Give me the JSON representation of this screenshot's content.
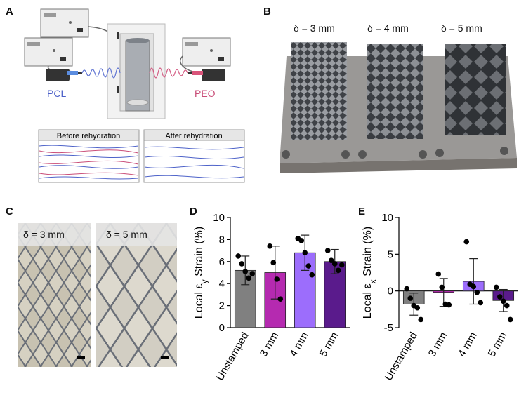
{
  "panels": {
    "A": {
      "label": "A",
      "pcl_label": "PCL",
      "peo_label": "PEO",
      "before_label": "Before rehydration",
      "after_label": "After rehydration"
    },
    "B": {
      "label": "B",
      "deltas": [
        "δ = 3 mm",
        "δ = 4 mm",
        "δ = 5 mm"
      ]
    },
    "C": {
      "label": "C",
      "deltas": [
        "δ = 3 mm",
        "δ = 5 mm"
      ]
    },
    "D": {
      "label": "D"
    },
    "E": {
      "label": "E"
    }
  },
  "chart_data": [
    {
      "type": "bar",
      "panel": "D",
      "ylabel": "Local εy Strain (%)",
      "ylim": [
        0,
        10
      ],
      "yticks": [
        0,
        2,
        4,
        6,
        8,
        10
      ],
      "categories": [
        "Unstamped",
        "3 mm",
        "4 mm",
        "5 mm"
      ],
      "values": [
        5.2,
        5.0,
        6.8,
        6.0
      ],
      "errors": [
        1.3,
        2.4,
        1.6,
        1.1
      ],
      "colors": [
        "#808080",
        "#b52ab0",
        "#9c6dfc",
        "#5a1b8c"
      ],
      "points": [
        [
          6.5,
          5.8,
          5.1,
          4.5,
          4.9
        ],
        [
          7.4,
          5.9,
          4.4,
          2.6
        ],
        [
          8.1,
          7.9,
          6.8,
          5.6,
          4.8
        ],
        [
          7.0,
          6.1,
          5.8,
          5.2,
          5.7
        ]
      ]
    },
    {
      "type": "bar",
      "panel": "E",
      "ylabel": "Local εx Strain (%)",
      "ylim": [
        -5,
        10
      ],
      "yticks": [
        -5,
        0,
        5,
        10
      ],
      "categories": [
        "Unstamped",
        "3 mm",
        "4 mm",
        "5 mm"
      ],
      "values": [
        -1.8,
        -0.2,
        1.3,
        -1.3
      ],
      "errors": [
        1.5,
        1.9,
        3.1,
        1.5
      ],
      "colors": [
        "#808080",
        "#b52ab0",
        "#9c6dfc",
        "#5a1b8c"
      ],
      "points": [
        [
          0.3,
          -1.0,
          -2.0,
          -2.3,
          -3.9
        ],
        [
          2.3,
          0.5,
          -1.8,
          -1.9
        ],
        [
          6.7,
          0.9,
          0.6,
          -0.2,
          -1.6
        ],
        [
          0.5,
          -0.8,
          -1.4,
          -2.0,
          -3.9
        ]
      ]
    }
  ]
}
